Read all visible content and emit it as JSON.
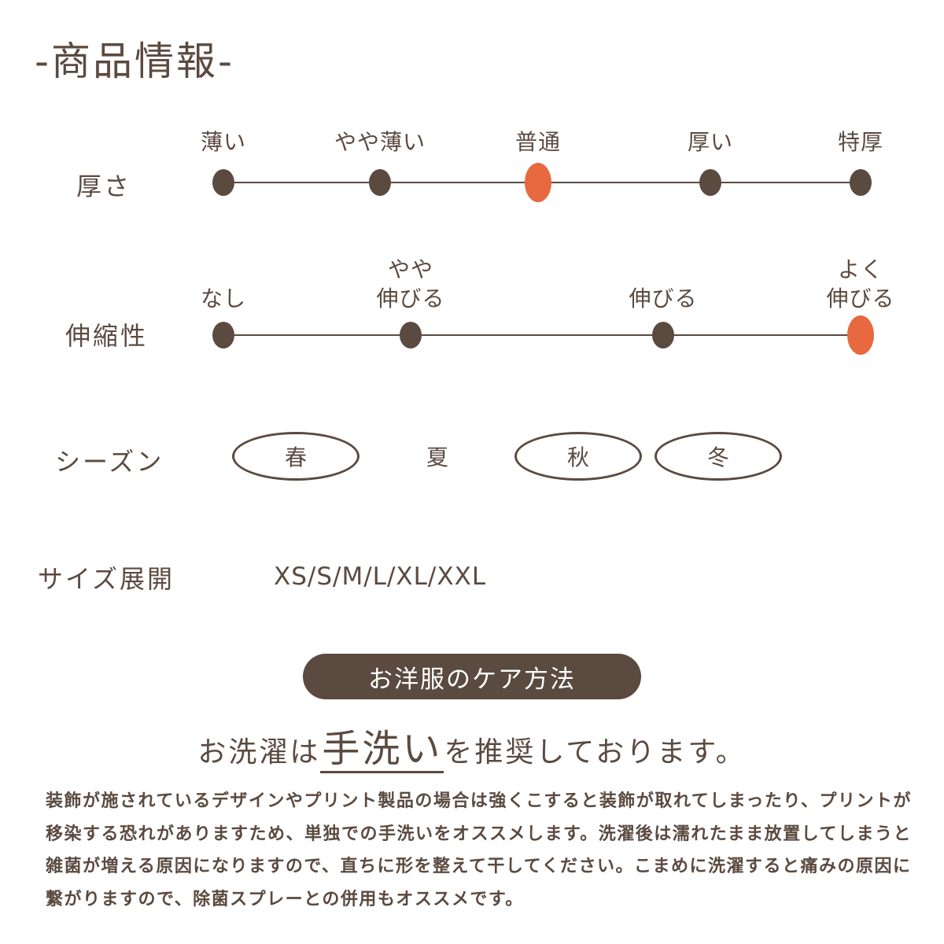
{
  "title": "-商品情報-",
  "thickness": {
    "label": "厚さ",
    "options": [
      "薄い",
      "やや薄い",
      "普通",
      "厚い",
      "特厚"
    ],
    "selected": 2
  },
  "stretch": {
    "label": "伸縮性",
    "options": [
      "なし",
      "やや\n伸びる",
      "伸びる",
      "よく\n伸びる"
    ],
    "selected": 3
  },
  "season": {
    "label": "シーズン",
    "options": [
      "春",
      "夏",
      "秋",
      "冬"
    ],
    "active": [
      true,
      false,
      true,
      true
    ]
  },
  "size": {
    "label": "サイズ展開",
    "value": "XS/S/M/L/XL/XXL"
  },
  "care": {
    "badge": "お洋服のケア方法",
    "headline_pre": "お洗濯は",
    "headline_em": "手洗い",
    "headline_post": "を推奨しております。",
    "paragraph": "装飾が施されているデザインやプリント製品の場合は強くこすると装飾が取れてしまったり、プリントが移染する恐れがありますため、単独での手洗いをオススメします。洗濯後は濡れたまま放置してしまうと雑菌が増える原因になりますので、直ちに形を整えて干してください。こまめに洗濯すると痛みの原因に繋がりますので、除菌スプレーとの併用もオススメです。"
  },
  "colors": {
    "brown": "#5b4a40",
    "accent": "#e8683f"
  }
}
